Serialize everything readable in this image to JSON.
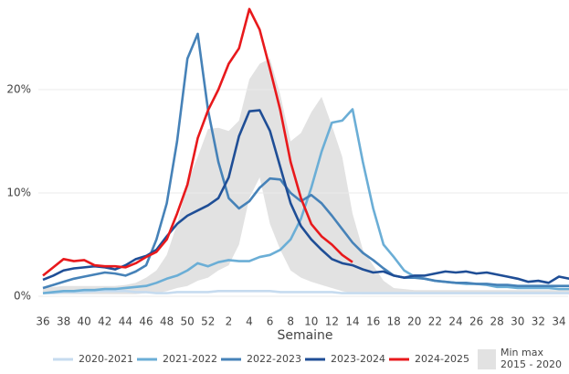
{
  "chart_data": {
    "type": "line",
    "x_label": "Semaine",
    "categories": [
      "36",
      null,
      "38",
      null,
      "40",
      null,
      "42",
      null,
      "44",
      null,
      "46",
      null,
      "48",
      null,
      "50",
      null,
      "52",
      null,
      "2",
      null,
      "4",
      null,
      "6",
      null,
      "8",
      null,
      "10",
      null,
      "12",
      null,
      "14",
      null,
      "16",
      null,
      "18",
      null,
      "20",
      null,
      "22",
      null,
      "24",
      null,
      "26",
      null,
      "28",
      null,
      "30",
      null,
      "32",
      null,
      "34",
      null
    ],
    "ylim": [
      0,
      28
    ],
    "yticks": [
      {
        "value": 0,
        "label": "0%"
      },
      {
        "value": 10,
        "label": "10%"
      },
      {
        "value": 20,
        "label": "20%"
      }
    ],
    "grid": true,
    "legend": "bottom",
    "band": {
      "name": "Min max 2015 - 2020",
      "color": "#e2e2e2",
      "lower": [
        0.2,
        0.2,
        0.2,
        0.2,
        0.2,
        0.2,
        0.2,
        0.2,
        0.2,
        0.2,
        0.3,
        0.3,
        0.5,
        0.8,
        1.0,
        1.5,
        1.8,
        2.5,
        3.0,
        5.0,
        9.5,
        11.5,
        7.0,
        4.5,
        2.5,
        1.8,
        1.4,
        1.1,
        0.8,
        0.5,
        0.3,
        0.2,
        0.2,
        0.2,
        0.2,
        0.2,
        0.2,
        0.2,
        0.2,
        0.2,
        0.2,
        0.2,
        0.2,
        0.2,
        0.2,
        0.2,
        0.2,
        0.2,
        0.2,
        0.2,
        0.2,
        0.2
      ],
      "upper": [
        0.8,
        0.9,
        1.0,
        1.0,
        1.0,
        1.0,
        1.0,
        1.0,
        1.1,
        1.3,
        1.8,
        2.5,
        4.0,
        7.0,
        11.0,
        13.5,
        16.2,
        16.3,
        16.0,
        17.0,
        21.0,
        22.5,
        23.0,
        19.5,
        15.0,
        15.8,
        17.8,
        19.3,
        16.5,
        13.5,
        8.0,
        4.5,
        3.0,
        1.5,
        0.8,
        0.7,
        0.6,
        0.6,
        0.6,
        0.6,
        0.6,
        0.6,
        0.6,
        0.6,
        0.6,
        0.6,
        0.6,
        0.6,
        0.6,
        0.6,
        0.6,
        0.6
      ]
    },
    "series": [
      {
        "name": "2020-2021",
        "color": "#c6dbef",
        "values": [
          0.3,
          0.3,
          0.4,
          0.4,
          0.4,
          0.5,
          0.5,
          0.5,
          0.5,
          0.4,
          0.4,
          0.3,
          0.3,
          0.4,
          0.4,
          0.4,
          0.4,
          0.5,
          0.5,
          0.5,
          0.5,
          0.5,
          0.5,
          0.4,
          0.4,
          0.4,
          0.4,
          0.4,
          0.4,
          0.3,
          0.3,
          0.3,
          0.3,
          0.3,
          0.3,
          0.3,
          0.3,
          0.3,
          0.3,
          0.3,
          0.3,
          0.3,
          0.3,
          0.3,
          0.3,
          0.3,
          0.3,
          0.3,
          0.3,
          0.3,
          0.3,
          0.3
        ]
      },
      {
        "name": "2021-2022",
        "color": "#6baed6",
        "values": [
          0.3,
          0.4,
          0.5,
          0.5,
          0.6,
          0.6,
          0.7,
          0.7,
          0.8,
          0.9,
          1.0,
          1.3,
          1.7,
          2.0,
          2.5,
          3.2,
          2.9,
          3.3,
          3.5,
          3.4,
          3.4,
          3.8,
          4.0,
          4.5,
          5.5,
          7.5,
          10.5,
          14.0,
          16.8,
          17.0,
          18.1,
          13.0,
          8.5,
          5.0,
          3.8,
          2.5,
          1.9,
          1.7,
          1.5,
          1.4,
          1.3,
          1.2,
          1.2,
          1.1,
          0.9,
          0.9,
          0.8,
          0.8,
          0.8,
          0.8,
          0.7,
          0.7
        ]
      },
      {
        "name": "2022-2023",
        "color": "#4682b8",
        "values": [
          0.8,
          1.1,
          1.4,
          1.7,
          1.9,
          2.1,
          2.3,
          2.2,
          2.0,
          2.4,
          3.0,
          5.5,
          9.0,
          15.0,
          23.0,
          25.4,
          18.0,
          13.0,
          9.5,
          8.5,
          9.2,
          10.5,
          11.4,
          11.3,
          10.0,
          9.2,
          9.8,
          9.0,
          7.8,
          6.5,
          5.2,
          4.2,
          3.5,
          2.7,
          2.0,
          1.8,
          1.8,
          1.7,
          1.5,
          1.4,
          1.3,
          1.3,
          1.2,
          1.2,
          1.1,
          1.1,
          1.0,
          1.0,
          1.0,
          1.0,
          1.0,
          1.0
        ]
      },
      {
        "name": "2023-2024",
        "color": "#1f4e96",
        "values": [
          1.6,
          2.0,
          2.5,
          2.7,
          2.8,
          2.9,
          2.8,
          2.6,
          3.0,
          3.6,
          3.9,
          4.5,
          5.8,
          7.0,
          7.8,
          8.3,
          8.8,
          9.5,
          11.5,
          15.5,
          17.9,
          18.0,
          16.0,
          12.5,
          9.0,
          6.8,
          5.5,
          4.5,
          3.6,
          3.2,
          3.0,
          2.6,
          2.3,
          2.4,
          2.0,
          1.8,
          2.0,
          2.0,
          2.2,
          2.4,
          2.3,
          2.4,
          2.2,
          2.3,
          2.1,
          1.9,
          1.7,
          1.4,
          1.5,
          1.3,
          1.9,
          1.7
        ]
      },
      {
        "name": "2024-2025",
        "color": "#e8191c",
        "values": [
          2.0,
          2.8,
          3.6,
          3.4,
          3.5,
          3.0,
          2.9,
          2.9,
          2.8,
          3.2,
          3.8,
          4.3,
          5.5,
          8.0,
          10.8,
          15.3,
          18.0,
          20.0,
          22.5,
          24.0,
          27.8,
          25.8,
          22.0,
          18.0,
          13.0,
          9.5,
          7.0,
          5.8,
          5.0,
          4.0,
          3.3,
          null,
          null,
          null,
          null,
          null,
          null,
          null,
          null,
          null,
          null,
          null,
          null,
          null,
          null,
          null,
          null,
          null,
          null,
          null,
          null,
          null
        ]
      }
    ]
  }
}
